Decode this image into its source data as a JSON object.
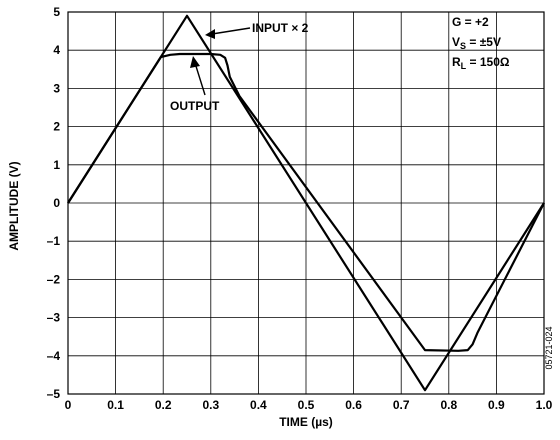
{
  "chart_data": {
    "type": "line",
    "xlabel": "TIME (µs)",
    "ylabel": "AMPLITUDE (V)",
    "xlim": [
      0,
      1.0
    ],
    "ylim": [
      -5,
      5
    ],
    "x_ticks": [
      "0",
      "0.1",
      "0.2",
      "0.3",
      "0.4",
      "0.5",
      "0.6",
      "0.7",
      "0.8",
      "0.9",
      "1.0"
    ],
    "y_ticks": [
      "5",
      "4",
      "3",
      "2",
      "1",
      "0",
      "–1",
      "–2",
      "–3",
      "–4",
      "–5"
    ],
    "grid": true,
    "series": [
      {
        "name": "INPUT × 2",
        "x": [
          0,
          0.25,
          0.75,
          1.0
        ],
        "y": [
          0,
          4.9,
          -4.9,
          0
        ]
      },
      {
        "name": "OUTPUT",
        "x": [
          0,
          0.195,
          0.215,
          0.235,
          0.3,
          0.32,
          0.33,
          0.335,
          0.34,
          0.36,
          0.75,
          0.82,
          0.84,
          0.85,
          0.86,
          1.0
        ],
        "y": [
          0,
          3.82,
          3.88,
          3.9,
          3.9,
          3.88,
          3.8,
          3.6,
          3.3,
          2.8,
          -3.85,
          -3.87,
          -3.85,
          -3.7,
          -3.4,
          0
        ]
      }
    ],
    "annotations": {
      "input_label": "INPUT × 2",
      "output_label": "OUTPUT"
    },
    "conditions": {
      "gain": "G = +2",
      "vs_prefix": "V",
      "vs_sub": "S",
      "vs_value": " = ±5V",
      "rl_prefix": "R",
      "rl_sub": "L",
      "rl_value": " = 150Ω"
    },
    "figure_id": "05721-024"
  }
}
